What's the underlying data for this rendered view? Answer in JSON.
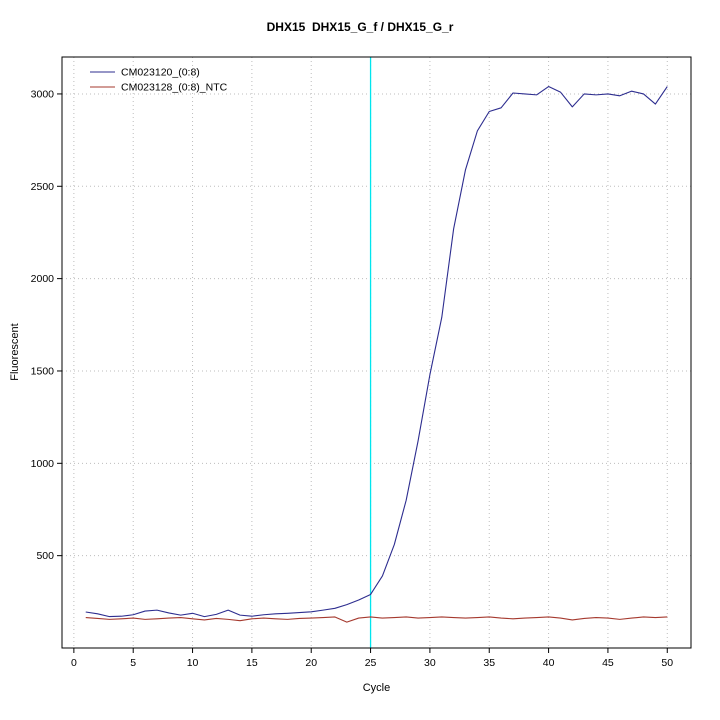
{
  "chart_data": {
    "type": "line",
    "title": "DHX15  DHX15_G_f / DHX15_G_r",
    "xlabel": "Cycle",
    "ylabel": "Fluorescent",
    "xlim": [
      -1,
      52
    ],
    "ylim": [
      0,
      3200
    ],
    "xticks": [
      0,
      5,
      10,
      15,
      20,
      25,
      30,
      35,
      40,
      45,
      50
    ],
    "yticks": [
      500,
      1000,
      1500,
      2000,
      2500,
      3000
    ],
    "grid": true,
    "legend_position": "top-left",
    "vline": {
      "x": 25,
      "color": "#00e5ee"
    },
    "cycles": [
      1,
      2,
      3,
      4,
      5,
      6,
      7,
      8,
      9,
      10,
      11,
      12,
      13,
      14,
      15,
      16,
      17,
      18,
      19,
      20,
      21,
      22,
      23,
      24,
      25,
      26,
      27,
      28,
      29,
      30,
      31,
      32,
      33,
      34,
      35,
      36,
      37,
      38,
      39,
      40,
      41,
      42,
      43,
      44,
      45,
      46,
      47,
      48,
      49,
      50
    ],
    "series": [
      {
        "name": "CM023120_(0:8)",
        "color": "#2d2d8f",
        "values": [
          195,
          185,
          170,
          172,
          180,
          200,
          205,
          190,
          178,
          188,
          170,
          182,
          205,
          178,
          172,
          180,
          185,
          188,
          192,
          196,
          205,
          215,
          235,
          260,
          290,
          390,
          560,
          800,
          1120,
          1480,
          1790,
          2270,
          2590,
          2800,
          2905,
          2925,
          3005,
          3000,
          2995,
          3040,
          3010,
          2930,
          3000,
          2995,
          3000,
          2990,
          3015,
          3000,
          2945,
          3040
        ]
      },
      {
        "name": "CM023128_(0:8)_NTC",
        "color": "#a5392e",
        "values": [
          165,
          160,
          155,
          158,
          162,
          155,
          158,
          162,
          165,
          158,
          152,
          160,
          155,
          148,
          158,
          162,
          158,
          155,
          160,
          162,
          165,
          168,
          140,
          162,
          168,
          162,
          165,
          168,
          162,
          165,
          168,
          165,
          162,
          165,
          168,
          162,
          158,
          162,
          165,
          168,
          162,
          152,
          160,
          165,
          162,
          155,
          162,
          168,
          165,
          168
        ]
      }
    ],
    "colors": {
      "grid": "#bdbdbd",
      "axis": "#000000",
      "background": "#ffffff"
    }
  }
}
